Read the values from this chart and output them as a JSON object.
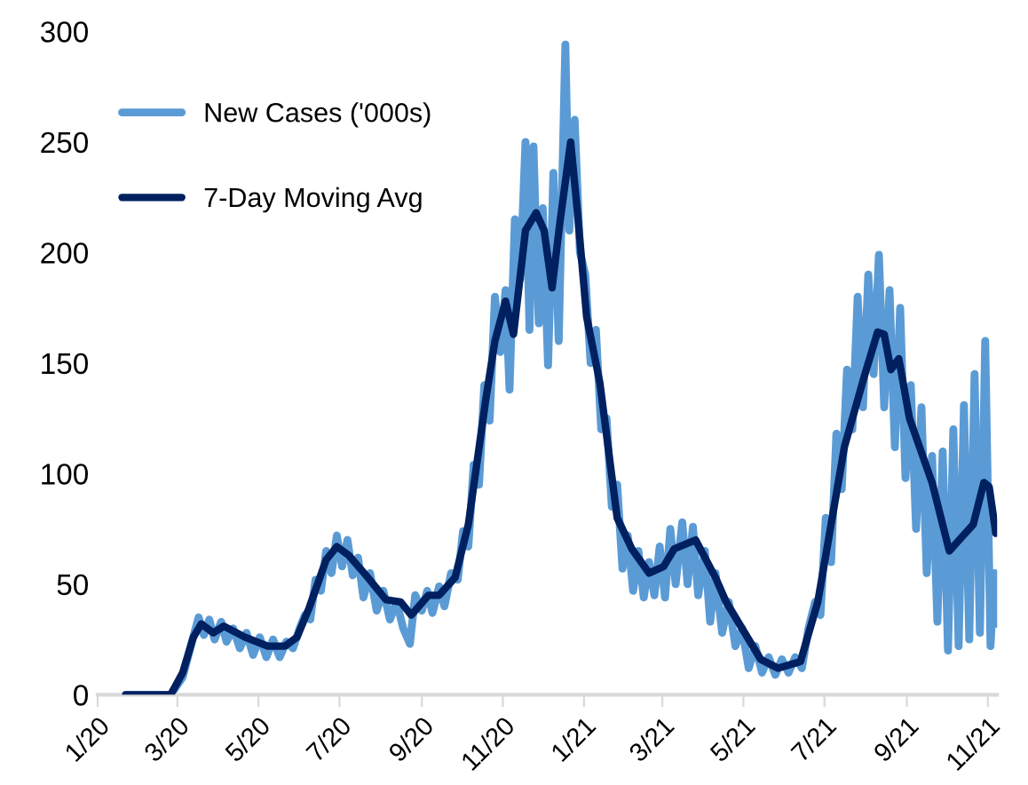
{
  "chart_data": {
    "type": "line",
    "x": [
      "2020-01-22",
      "2020-02-25",
      "2020-03-05",
      "2020-03-12",
      "2020-03-17",
      "2020-03-21",
      "2020-03-25",
      "2020-03-29",
      "2020-04-03",
      "2020-04-07",
      "2020-04-12",
      "2020-04-17",
      "2020-04-22",
      "2020-04-27",
      "2020-05-02",
      "2020-05-07",
      "2020-05-12",
      "2020-05-17",
      "2020-05-22",
      "2020-05-27",
      "2020-06-01",
      "2020-06-05",
      "2020-06-09",
      "2020-06-13",
      "2020-06-17",
      "2020-06-21",
      "2020-06-25",
      "2020-06-29",
      "2020-07-03",
      "2020-07-07",
      "2020-07-11",
      "2020-07-15",
      "2020-07-19",
      "2020-07-24",
      "2020-07-29",
      "2020-08-03",
      "2020-08-08",
      "2020-08-13",
      "2020-08-18",
      "2020-08-23",
      "2020-08-27",
      "2020-09-01",
      "2020-09-05",
      "2020-09-09",
      "2020-09-14",
      "2020-09-18",
      "2020-09-23",
      "2020-09-28",
      "2020-10-02",
      "2020-10-06",
      "2020-10-10",
      "2020-10-14",
      "2020-10-18",
      "2020-10-22",
      "2020-10-26",
      "2020-10-30",
      "2020-11-03",
      "2020-11-06",
      "2020-11-10",
      "2020-11-14",
      "2020-11-18",
      "2020-11-21",
      "2020-11-24",
      "2020-11-28",
      "2020-12-01",
      "2020-12-05",
      "2020-12-09",
      "2020-12-13",
      "2020-12-18",
      "2020-12-21",
      "2020-12-25",
      "2020-12-29",
      "2021-01-02",
      "2021-01-06",
      "2021-01-10",
      "2021-01-14",
      "2021-01-18",
      "2021-01-22",
      "2021-01-26",
      "2021-01-30",
      "2021-02-03",
      "2021-02-07",
      "2021-02-11",
      "2021-02-15",
      "2021-02-19",
      "2021-02-23",
      "2021-02-27",
      "2021-03-03",
      "2021-03-07",
      "2021-03-11",
      "2021-03-16",
      "2021-03-20",
      "2021-03-24",
      "2021-03-28",
      "2021-04-02",
      "2021-04-06",
      "2021-04-10",
      "2021-04-15",
      "2021-04-20",
      "2021-04-25",
      "2021-04-30",
      "2021-05-05",
      "2021-05-10",
      "2021-05-15",
      "2021-05-20",
      "2021-05-25",
      "2021-05-30",
      "2021-06-04",
      "2021-06-09",
      "2021-06-14",
      "2021-06-19",
      "2021-06-24",
      "2021-06-28",
      "2021-07-02",
      "2021-07-06",
      "2021-07-10",
      "2021-07-14",
      "2021-07-18",
      "2021-07-22",
      "2021-07-26",
      "2021-07-30",
      "2021-08-03",
      "2021-08-07",
      "2021-08-11",
      "2021-08-15",
      "2021-08-19",
      "2021-08-23",
      "2021-08-27",
      "2021-08-31",
      "2021-09-04",
      "2021-09-08",
      "2021-09-12",
      "2021-09-16",
      "2021-09-20",
      "2021-09-24",
      "2021-09-28",
      "2021-10-02",
      "2021-10-06",
      "2021-10-10",
      "2021-10-14",
      "2021-10-18",
      "2021-10-22",
      "2021-10-26",
      "2021-10-30",
      "2021-11-03",
      "2021-11-06",
      "2021-11-08"
    ],
    "series": [
      {
        "name": "New Cases ('000s)",
        "color": "#5b9bd5",
        "values": [
          0,
          0,
          8,
          24,
          35,
          27,
          34,
          25,
          33,
          24,
          30,
          21,
          28,
          18,
          26,
          17,
          25,
          17,
          24,
          21,
          30,
          36,
          34,
          52,
          47,
          65,
          55,
          72,
          58,
          70,
          54,
          62,
          44,
          55,
          38,
          47,
          34,
          42,
          30,
          23,
          45,
          38,
          47,
          37,
          49,
          40,
          55,
          52,
          74,
          67,
          104,
          95,
          140,
          124,
          180,
          155,
          183,
          138,
          215,
          188,
          250,
          165,
          248,
          168,
          220,
          149,
          236,
          160,
          294,
          210,
          260,
          200,
          190,
          150,
          165,
          120,
          125,
          85,
          95,
          57,
          72,
          47,
          65,
          44,
          60,
          45,
          67,
          44,
          75,
          50,
          78,
          50,
          76,
          45,
          65,
          33,
          55,
          28,
          42,
          22,
          30,
          12,
          22,
          10,
          17,
          9,
          16,
          10,
          17,
          12,
          30,
          42,
          36,
          80,
          60,
          118,
          93,
          147,
          120,
          180,
          130,
          190,
          145,
          199,
          130,
          183,
          112,
          175,
          98,
          140,
          75,
          130,
          55,
          108,
          33,
          110,
          20,
          120,
          22,
          131,
          25,
          145,
          28,
          160,
          22,
          55,
          32
        ]
      },
      {
        "name": "7-Day Moving Avg",
        "color": "#002060",
        "x": [
          "2020-01-22",
          "2020-02-25",
          "2020-03-05",
          "2020-03-13",
          "2020-03-19",
          "2020-03-28",
          "2020-04-05",
          "2020-04-21",
          "2020-05-08",
          "2020-05-21",
          "2020-05-30",
          "2020-06-08",
          "2020-06-21",
          "2020-06-29",
          "2020-07-08",
          "2020-07-21",
          "2020-08-05",
          "2020-08-16",
          "2020-08-24",
          "2020-09-06",
          "2020-09-14",
          "2020-09-26",
          "2020-10-06",
          "2020-10-19",
          "2020-10-26",
          "2020-11-03",
          "2020-11-09",
          "2020-11-18",
          "2020-11-26",
          "2020-12-02",
          "2020-12-08",
          "2020-12-14",
          "2020-12-22",
          "2020-12-27",
          "2021-01-03",
          "2021-01-13",
          "2021-01-26",
          "2021-02-06",
          "2021-02-19",
          "2021-03-02",
          "2021-03-10",
          "2021-03-26",
          "2021-04-10",
          "2021-04-18",
          "2021-05-14",
          "2021-05-27",
          "2021-06-13",
          "2021-06-26",
          "2021-07-16",
          "2021-07-31",
          "2021-08-10",
          "2021-08-15",
          "2021-08-20",
          "2021-08-26",
          "2021-09-03",
          "2021-09-20",
          "2021-10-03",
          "2021-10-12",
          "2021-10-21",
          "2021-10-29",
          "2021-11-02",
          "2021-11-07"
        ],
        "values": [
          0,
          0,
          10,
          26,
          32,
          28,
          31,
          26,
          22,
          22,
          26,
          39,
          61,
          67,
          63,
          54,
          43,
          42,
          36,
          45,
          45,
          53,
          77,
          133,
          160,
          178,
          163,
          210,
          218,
          210,
          184,
          214,
          250,
          219,
          171,
          141,
          80,
          66,
          55,
          58,
          66,
          70,
          53,
          42,
          16,
          12,
          15,
          42,
          112,
          144,
          164,
          163,
          147,
          152,
          125,
          96,
          65,
          71,
          77,
          96,
          94,
          73
        ]
      }
    ],
    "xlim": [
      "2020-01-01",
      "2021-11-08"
    ],
    "xticks": [
      {
        "value": "2020-01-01",
        "label": "1/20"
      },
      {
        "value": "2020-03-01",
        "label": "3/20"
      },
      {
        "value": "2020-05-01",
        "label": "5/20"
      },
      {
        "value": "2020-07-01",
        "label": "7/20"
      },
      {
        "value": "2020-09-01",
        "label": "9/20"
      },
      {
        "value": "2020-11-01",
        "label": "11/20"
      },
      {
        "value": "2021-01-01",
        "label": "1/21"
      },
      {
        "value": "2021-03-01",
        "label": "3/21"
      },
      {
        "value": "2021-05-01",
        "label": "5/21"
      },
      {
        "value": "2021-07-01",
        "label": "7/21"
      },
      {
        "value": "2021-09-01",
        "label": "9/21"
      },
      {
        "value": "2021-11-01",
        "label": "11/21"
      }
    ],
    "ylim": [
      0,
      300
    ],
    "yticks": [
      0,
      50,
      100,
      150,
      200,
      250,
      300
    ],
    "grid": false,
    "legend": "top left",
    "marker": "none",
    "line_style": "solid"
  }
}
